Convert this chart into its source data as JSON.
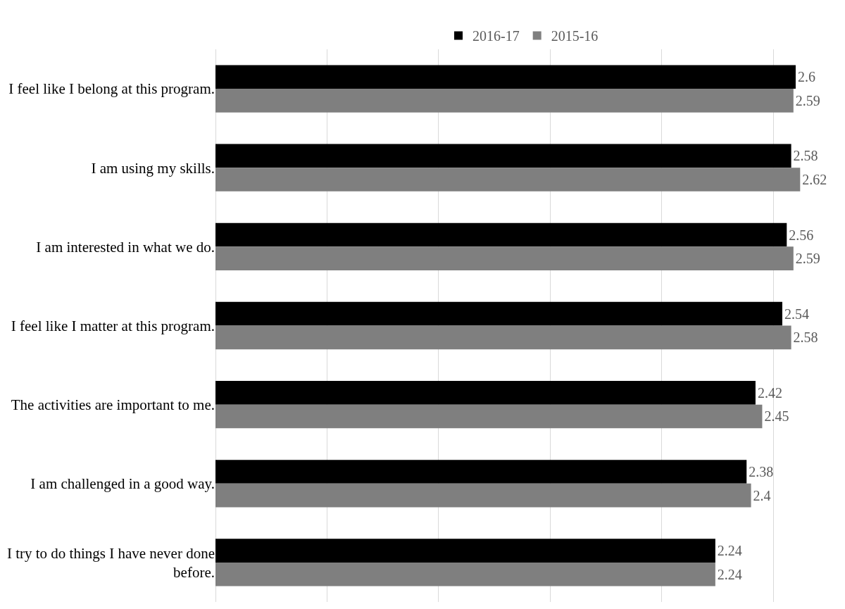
{
  "chart_data": {
    "type": "bar",
    "orientation": "horizontal",
    "categories": [
      "I feel like I belong at this program.",
      "I am using my skills.",
      "I am interested in what we do.",
      "I feel like I matter at this program.",
      "The activities are important to me.",
      "I am challenged in a good way.",
      "I try to do things I have never done before."
    ],
    "series": [
      {
        "name": "2016-17",
        "color": "#000000",
        "values": [
          2.6,
          2.58,
          2.56,
          2.54,
          2.42,
          2.38,
          2.24
        ]
      },
      {
        "name": "2015-16",
        "color": "#7f7f7f",
        "values": [
          2.59,
          2.62,
          2.59,
          2.58,
          2.45,
          2.4,
          2.24
        ]
      }
    ],
    "tick_labels": "y",
    "grid": "x",
    "legend": "top",
    "data_labels": true
  }
}
